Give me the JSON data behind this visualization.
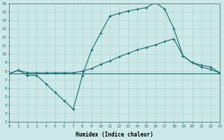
{
  "xlabel": "Humidex (Indice chaleur)",
  "xlim": [
    0,
    23
  ],
  "ylim": [
    2,
    16
  ],
  "xticks": [
    0,
    1,
    2,
    3,
    4,
    5,
    6,
    7,
    8,
    9,
    10,
    11,
    12,
    13,
    14,
    15,
    16,
    17,
    18,
    19,
    20,
    21,
    22,
    23
  ],
  "yticks": [
    2,
    3,
    4,
    5,
    6,
    7,
    8,
    9,
    10,
    11,
    12,
    13,
    14,
    15,
    16
  ],
  "bg_color": "#cce8e8",
  "line_color": "#1a6b6b",
  "grid_color": "#b0d4d4",
  "font_family": "monospace",
  "line1_x": [
    0,
    1,
    2,
    3,
    4,
    5,
    6,
    7,
    8,
    9,
    10,
    11,
    12,
    13,
    14,
    15,
    16,
    17,
    18,
    19,
    20,
    21,
    22,
    23
  ],
  "line1_y": [
    7.7,
    8.1,
    7.5,
    7.5,
    6.5,
    5.5,
    4.5,
    3.5,
    7.5,
    10.5,
    12.5,
    14.5,
    14.8,
    15.1,
    15.3,
    15.5,
    16.1,
    15.3,
    13.0,
    9.8,
    9.0,
    8.5,
    8.2,
    7.8
  ],
  "line2_x": [
    0,
    1,
    2,
    3,
    4,
    5,
    6,
    7,
    8,
    9,
    10,
    11,
    12,
    13,
    14,
    15,
    16,
    17,
    18,
    19,
    20,
    21,
    22,
    23
  ],
  "line2_y": [
    7.7,
    8.1,
    7.8,
    7.8,
    7.8,
    7.8,
    7.8,
    7.8,
    8.0,
    8.3,
    8.8,
    9.2,
    9.7,
    10.1,
    10.5,
    10.8,
    11.1,
    11.5,
    11.8,
    9.8,
    9.0,
    8.7,
    8.5,
    7.8
  ],
  "line3_x": [
    0,
    1,
    2,
    3,
    4,
    5,
    6,
    7,
    8,
    9,
    10,
    11,
    12,
    13,
    14,
    15,
    16,
    17,
    18,
    19,
    20,
    21,
    22,
    23
  ],
  "line3_y": [
    7.7,
    7.7,
    7.7,
    7.7,
    7.7,
    7.7,
    7.7,
    7.7,
    7.7,
    7.7,
    7.7,
    7.7,
    7.7,
    7.7,
    7.7,
    7.7,
    7.7,
    7.7,
    7.7,
    7.7,
    7.7,
    7.7,
    7.7,
    7.7
  ]
}
